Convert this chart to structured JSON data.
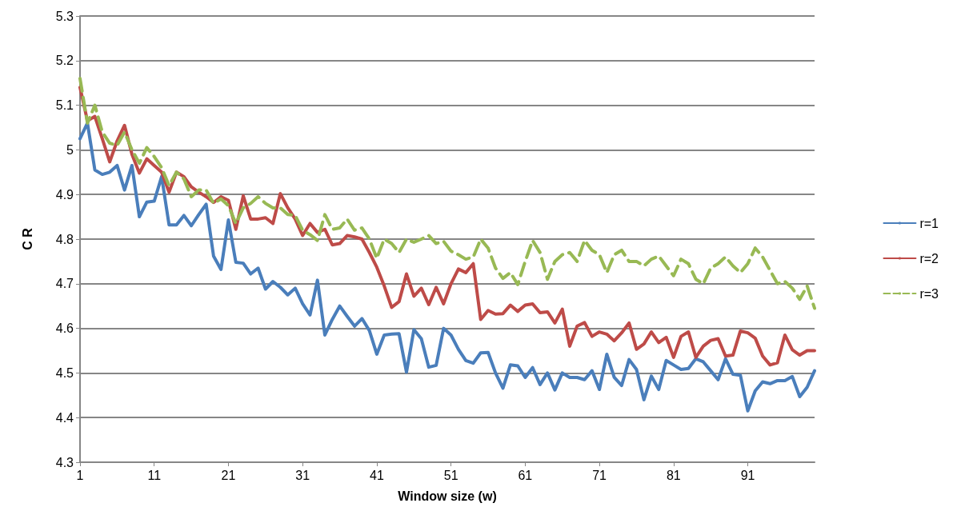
{
  "chart_data": {
    "type": "line",
    "xlabel": "Window size (w)",
    "ylabel": "C R",
    "categories": [
      "1",
      null,
      null,
      null,
      null,
      null,
      null,
      null,
      null,
      null,
      "11",
      null,
      null,
      null,
      null,
      null,
      null,
      null,
      null,
      null,
      "21",
      null,
      null,
      null,
      null,
      null,
      null,
      null,
      null,
      null,
      "31",
      null,
      null,
      null,
      null,
      null,
      null,
      null,
      null,
      null,
      "41",
      null,
      null,
      null,
      null,
      null,
      null,
      null,
      null,
      null,
      "51",
      null,
      null,
      null,
      null,
      null,
      null,
      null,
      null,
      null,
      "61",
      null,
      null,
      null,
      null,
      null,
      null,
      null,
      null,
      null,
      "71",
      null,
      null,
      null,
      null,
      null,
      null,
      null,
      null,
      null,
      "81",
      null,
      null,
      null,
      null,
      null,
      null,
      null,
      null,
      null,
      "91",
      null,
      null,
      null,
      null,
      null,
      null,
      null,
      null,
      null
    ],
    "series": [
      {
        "name": "r=1",
        "color": "#4a7ebb",
        "line_style": "solid",
        "values": [
          5.025,
          5.06,
          4.955,
          4.945,
          4.95,
          4.965,
          4.91,
          4.965,
          4.85,
          4.883,
          4.885,
          4.94,
          4.832,
          4.832,
          4.853,
          4.83,
          4.855,
          4.878,
          4.762,
          4.732,
          4.843,
          4.748,
          4.746,
          4.722,
          4.735,
          4.688,
          4.705,
          4.692,
          4.675,
          4.69,
          4.655,
          4.63,
          4.708,
          4.585,
          4.62,
          4.65,
          4.627,
          4.605,
          4.622,
          4.595,
          4.542,
          4.585,
          4.587,
          4.588,
          4.502,
          4.597,
          4.577,
          4.513,
          4.517,
          4.6,
          4.585,
          4.553,
          4.528,
          4.522,
          4.545,
          4.546,
          4.5,
          4.466,
          4.518,
          4.516,
          4.49,
          4.512,
          4.474,
          4.5,
          4.462,
          4.5,
          4.49,
          4.49,
          4.485,
          4.505,
          4.463,
          4.542,
          4.49,
          4.472,
          4.53,
          4.508,
          4.44,
          4.493,
          4.463,
          4.528,
          4.518,
          4.508,
          4.51,
          4.532,
          4.525,
          4.505,
          4.485,
          4.532,
          4.497,
          4.495,
          4.415,
          4.46,
          4.48,
          4.476,
          4.483,
          4.483,
          4.492,
          4.447,
          4.468,
          4.505
        ]
      },
      {
        "name": "r=2",
        "color": "#be4b48",
        "line_style": "solid",
        "values": [
          5.14,
          5.065,
          5.075,
          5.025,
          4.973,
          5.02,
          5.055,
          4.99,
          4.948,
          4.98,
          4.965,
          4.95,
          4.905,
          4.95,
          4.94,
          4.917,
          4.905,
          4.895,
          4.882,
          4.895,
          4.887,
          4.822,
          4.897,
          4.845,
          4.845,
          4.848,
          4.835,
          4.902,
          4.87,
          4.845,
          4.808,
          4.835,
          4.815,
          4.822,
          4.787,
          4.79,
          4.808,
          4.805,
          4.8,
          4.77,
          4.737,
          4.695,
          4.647,
          4.66,
          4.722,
          4.672,
          4.69,
          4.653,
          4.692,
          4.655,
          4.7,
          4.733,
          4.725,
          4.745,
          4.62,
          4.64,
          4.632,
          4.633,
          4.652,
          4.638,
          4.652,
          4.655,
          4.635,
          4.637,
          4.612,
          4.643,
          4.56,
          4.605,
          4.613,
          4.582,
          4.592,
          4.587,
          4.572,
          4.59,
          4.612,
          4.553,
          4.565,
          4.592,
          4.568,
          4.58,
          4.535,
          4.582,
          4.592,
          4.535,
          4.56,
          4.573,
          4.577,
          4.538,
          4.54,
          4.594,
          4.59,
          4.578,
          4.538,
          4.518,
          4.523,
          4.585,
          4.552,
          4.54,
          4.55,
          4.55
        ]
      },
      {
        "name": "r=3",
        "color": "#98b954",
        "line_style": "dashed",
        "values": [
          5.16,
          5.06,
          5.1,
          5.04,
          5.015,
          5.01,
          5.04,
          5.0,
          4.97,
          5.005,
          4.985,
          4.96,
          4.92,
          4.95,
          4.935,
          4.895,
          4.91,
          4.91,
          4.88,
          4.89,
          4.875,
          4.835,
          4.87,
          4.88,
          4.895,
          4.88,
          4.87,
          4.87,
          4.855,
          4.853,
          4.82,
          4.81,
          4.797,
          4.855,
          4.822,
          4.825,
          4.845,
          4.82,
          4.825,
          4.8,
          4.757,
          4.8,
          4.79,
          4.77,
          4.8,
          4.793,
          4.8,
          4.808,
          4.79,
          4.795,
          4.773,
          4.765,
          4.755,
          4.76,
          4.8,
          4.78,
          4.735,
          4.712,
          4.725,
          4.698,
          4.75,
          4.797,
          4.77,
          4.71,
          4.75,
          4.765,
          4.77,
          4.75,
          4.797,
          4.775,
          4.765,
          4.725,
          4.765,
          4.775,
          4.75,
          4.75,
          4.74,
          4.755,
          4.762,
          4.74,
          4.718,
          4.755,
          4.745,
          4.71,
          4.7,
          4.735,
          4.745,
          4.76,
          4.74,
          4.725,
          4.745,
          4.78,
          4.76,
          4.73,
          4.7,
          4.705,
          4.69,
          4.665,
          4.695,
          4.645
        ]
      }
    ],
    "ylim": [
      4.3,
      5.3
    ],
    "yticks": [
      4.3,
      4.4,
      4.5,
      4.6,
      4.7,
      4.8,
      4.9,
      5,
      5.1,
      5.2,
      5.3
    ],
    "grid": "y",
    "legend": "right",
    "marker": "none"
  }
}
